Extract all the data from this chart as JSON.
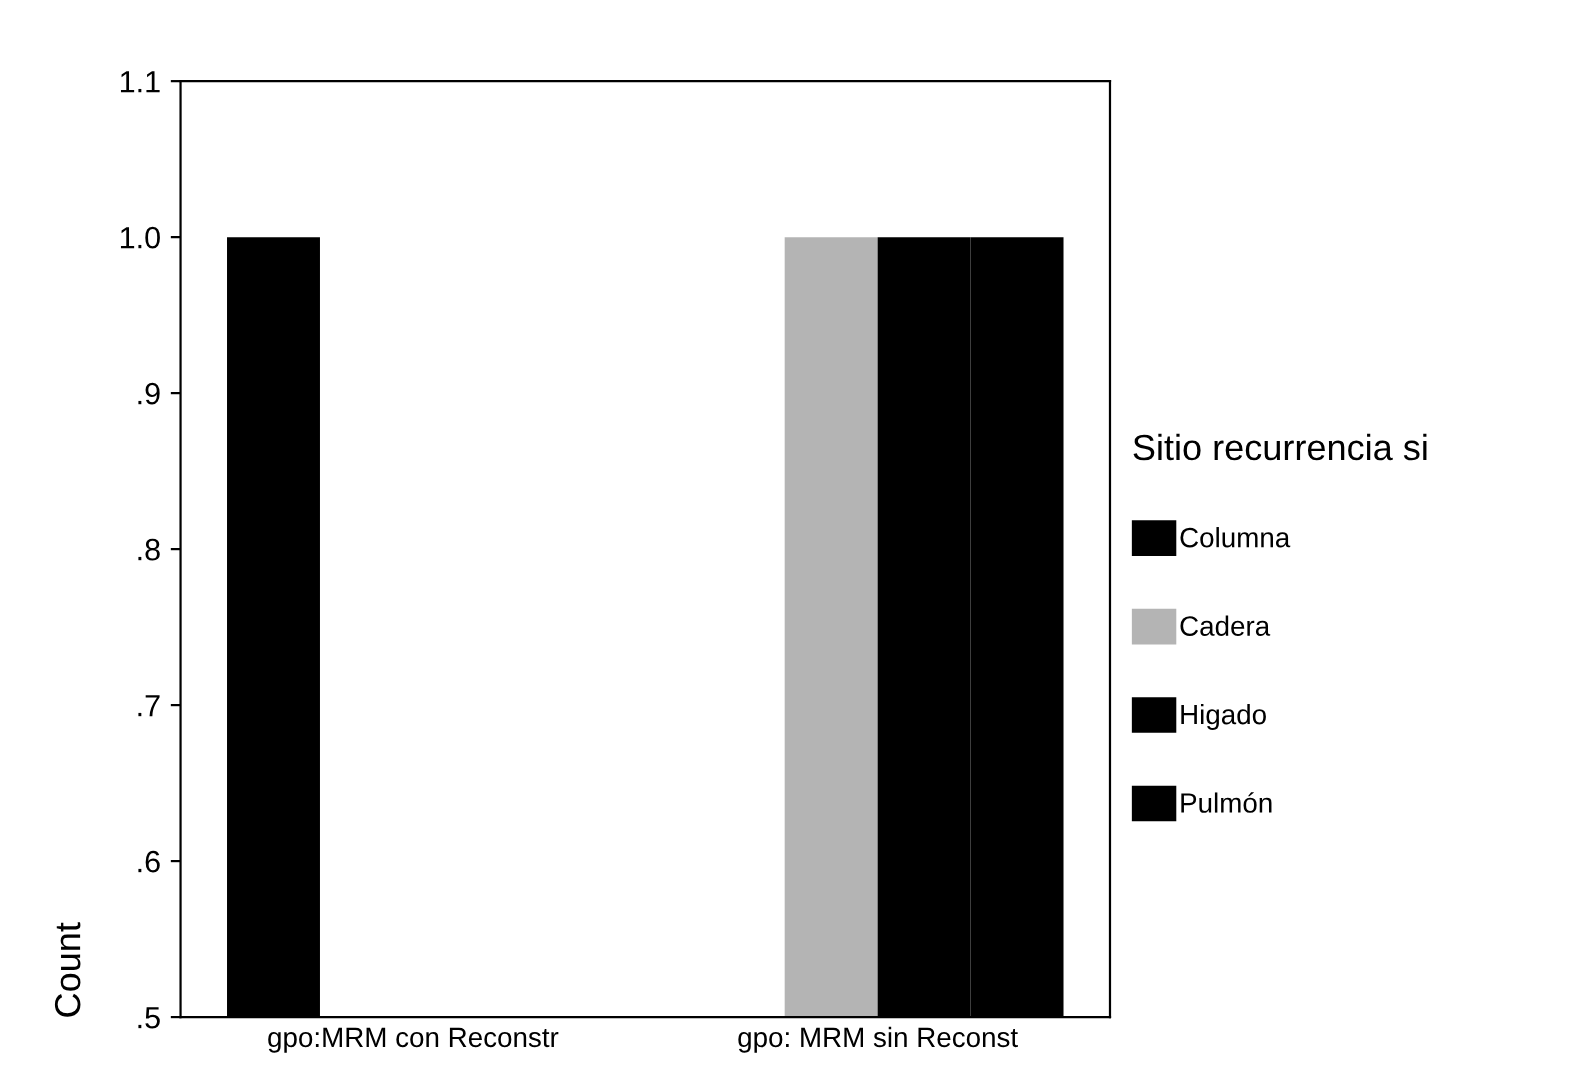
{
  "chart_data": {
    "type": "bar",
    "ylabel": "Count",
    "legend_title": "Sitio recurrencia si",
    "categories": [
      "gpo:MRM con Reconstr",
      "gpo: MRM sin Reconst"
    ],
    "series": [
      {
        "name": "Columna",
        "color": "#000000",
        "values": [
          1.0,
          null
        ]
      },
      {
        "name": "Cadera",
        "color": "#b4b4b4",
        "values": [
          null,
          1.0
        ]
      },
      {
        "name": "Higado",
        "color": "#000000",
        "values": [
          null,
          1.0
        ]
      },
      {
        "name": "Pulmón",
        "color": "#000000",
        "values": [
          null,
          1.0
        ]
      }
    ],
    "ylim": [
      0.5,
      1.1
    ],
    "yticks": [
      {
        "value": 0.5,
        "label": ".5"
      },
      {
        "value": 0.6,
        "label": ".6"
      },
      {
        "value": 0.7,
        "label": ".7"
      },
      {
        "value": 0.8,
        "label": ".8"
      },
      {
        "value": 0.9,
        "label": ".9"
      },
      {
        "value": 1.0,
        "label": "1.0"
      },
      {
        "value": 1.1,
        "label": "1.1"
      }
    ],
    "grid": false,
    "legend": "right"
  }
}
